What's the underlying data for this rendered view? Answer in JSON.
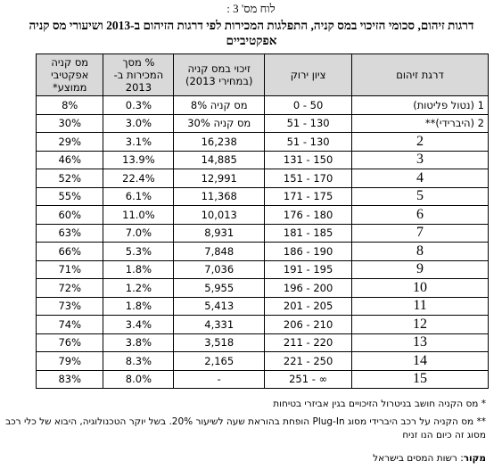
{
  "caption": "לוח מס' 3 :",
  "title": "דרגות זיהום, סכומי הזיכוי במס קניה, התפלגות המכירות לפי דרגות הזיהום ב-2013 ושיעורי מס קניה אפקטיביים",
  "table": {
    "header": [
      "דרגת זיהום",
      "ציון ירוק",
      "זיכוי במס קניה (במחירי 2013)",
      "% מסך המכירות ב- 2013",
      "מס קניה אפקטיבי ממוצע*"
    ],
    "rows": [
      [
        "1 (נטול פליטות)",
        "0 - 50",
        "מס קניה 8%",
        "0.3%",
        "8%"
      ],
      [
        "2 (היברידי)**",
        "51 - 130",
        "מס קניה 30%",
        "3.0%",
        "30%"
      ],
      [
        "2",
        "51 - 130",
        "16,238",
        "3.1%",
        "29%"
      ],
      [
        "3",
        "131 - 150",
        "14,885",
        "13.9%",
        "46%"
      ],
      [
        "4",
        "151 - 170",
        "12,991",
        "22.4%",
        "52%"
      ],
      [
        "5",
        "171 - 175",
        "11,368",
        "6.1%",
        "55%"
      ],
      [
        "6",
        "176 - 180",
        "10,013",
        "11.0%",
        "60%"
      ],
      [
        "7",
        "181 - 185",
        "8,931",
        "7.0%",
        "63%"
      ],
      [
        "8",
        "186 - 190",
        "7,848",
        "5.3%",
        "66%"
      ],
      [
        "9",
        "191 - 195",
        "7,036",
        "1.8%",
        "71%"
      ],
      [
        "10",
        "196 - 200",
        "5,955",
        "1.2%",
        "72%"
      ],
      [
        "11",
        "201 - 205",
        "5,413",
        "1.8%",
        "73%"
      ],
      [
        "12",
        "206 - 210",
        "4,331",
        "3.4%",
        "74%"
      ],
      [
        "13",
        "211 - 220",
        "3,518",
        "3.8%",
        "76%"
      ],
      [
        "14",
        "221 - 250",
        "2,165",
        "8.3%",
        "79%"
      ],
      [
        "15",
        "251 - ∞",
        "-",
        "8.0%",
        "83%"
      ]
    ]
  },
  "notes": [
    "* מס הקניה חושב בניטרול הזיכויים בגין אביזרי בטיחות",
    "** מס הקניה על רכב היברידי מסוג Plug-In הופחת בהוראת שעה לשיעור 20%. בשל יוקר הטכנולוגיה, היבוא של כלי רכב מסוג זה כיום הנו זניח"
  ],
  "source": {
    "label": "מקור",
    "text": ": רשות המסים בישראל"
  }
}
